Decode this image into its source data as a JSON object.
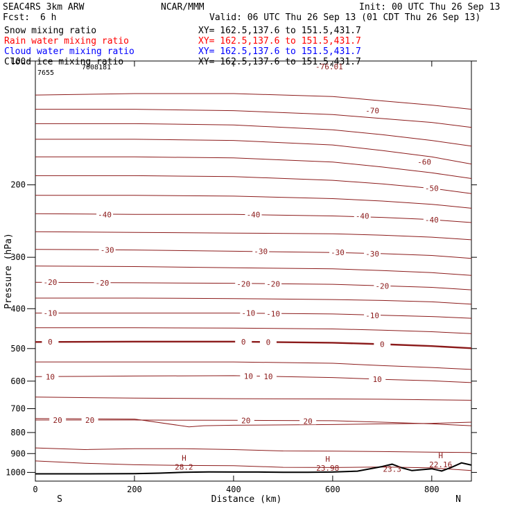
{
  "header": {
    "project": "SEAC4RS  3km ARW",
    "org": "NCAR/MMM",
    "init": "Init: 00 UTC Thu 26 Sep 13",
    "fcst_label": "Fcst:",
    "fcst_value": "6 h",
    "valid": "Valid: 06 UTC Thu 26 Sep 13 (01 CDT Thu 26 Sep 13)"
  },
  "legend": [
    {
      "name": "Snow mixing ratio",
      "xy": "XY= 162.5,137.6 to 151.5,431.7",
      "color": "#000000"
    },
    {
      "name": "Rain water mixing ratio",
      "xy": "XY= 162.5,137.6 to 151.5,431.7",
      "color": "#ff0000"
    },
    {
      "name": "Cloud water mixing ratio",
      "xy": "XY= 162.5,137.6 to 151.5,431.7",
      "color": "#0000ff"
    },
    {
      "name": "Cloud ice mixing ratio",
      "xy": "XY= 162.5,137.6 to 151.5,431.7",
      "color": "#000000"
    }
  ],
  "colors": {
    "contour": "#8b1a1a",
    "axis": "#000000",
    "terrain": "#000000"
  },
  "chart_data": {
    "type": "line",
    "xlabel": "Distance (km)",
    "ylabel": "Pressure (hPa)",
    "xlim": [
      0,
      880
    ],
    "ylim": [
      1050,
      100
    ],
    "yscale": "log",
    "x_ticks": [
      0,
      200,
      400,
      600,
      800
    ],
    "y_ticks": [
      100,
      200,
      300,
      400,
      500,
      600,
      700,
      800,
      900,
      1000
    ],
    "x_end_labels": {
      "left": "S",
      "right": "N"
    },
    "annotations": [
      "7655",
      "7008181",
      "-76.01"
    ],
    "contour_interval": 5,
    "isotherms": [
      {
        "level": -75,
        "x": [
          0,
          200,
          400,
          600,
          700,
          800,
          880
        ],
        "p": [
          121,
          120,
          120,
          122,
          125,
          128,
          131
        ]
      },
      {
        "level": -70,
        "x": [
          0,
          200,
          400,
          600,
          700,
          800,
          880
        ],
        "p": [
          131,
          131,
          132,
          135,
          138,
          141,
          145
        ]
      },
      {
        "level": -65,
        "x": [
          0,
          200,
          400,
          600,
          700,
          800,
          880
        ],
        "p": [
          142,
          142,
          143,
          147,
          151,
          156,
          161
        ]
      },
      {
        "level": -60,
        "x": [
          0,
          200,
          400,
          600,
          700,
          800,
          880
        ],
        "p": [
          155,
          155,
          156,
          160,
          165,
          171,
          178
        ]
      },
      {
        "level": -55,
        "x": [
          0,
          200,
          400,
          600,
          700,
          800,
          880
        ],
        "p": [
          171,
          171,
          172,
          176,
          181,
          187,
          193
        ]
      },
      {
        "level": -50,
        "x": [
          0,
          200,
          400,
          600,
          700,
          800,
          880
        ],
        "p": [
          190,
          190,
          191,
          195,
          199,
          204,
          210
        ]
      },
      {
        "level": -45,
        "x": [
          0,
          200,
          400,
          600,
          700,
          800,
          880
        ],
        "p": [
          212,
          212,
          213,
          216,
          219,
          223,
          228
        ]
      },
      {
        "level": -40,
        "x": [
          0,
          200,
          400,
          600,
          700,
          800,
          880
        ],
        "p": [
          235,
          236,
          236,
          238,
          240,
          243,
          247
        ]
      },
      {
        "level": -35,
        "x": [
          0,
          200,
          400,
          600,
          700,
          800,
          880
        ],
        "p": [
          260,
          261,
          262,
          263,
          265,
          268,
          272
        ]
      },
      {
        "level": -30,
        "x": [
          0,
          200,
          400,
          600,
          700,
          800,
          880
        ],
        "p": [
          287,
          288,
          290,
          292,
          294,
          297,
          302
        ]
      },
      {
        "level": -25,
        "x": [
          0,
          200,
          400,
          600,
          700,
          800,
          880
        ],
        "p": [
          315,
          316,
          318,
          320,
          323,
          327,
          332
        ]
      },
      {
        "level": -20,
        "x": [
          0,
          200,
          400,
          600,
          700,
          800,
          880
        ],
        "p": [
          345,
          346,
          347,
          349,
          352,
          355,
          360
        ]
      },
      {
        "level": -15,
        "x": [
          0,
          200,
          400,
          600,
          700,
          800,
          880
        ],
        "p": [
          377,
          377,
          378,
          380,
          382,
          385,
          390
        ]
      },
      {
        "level": -10,
        "x": [
          0,
          200,
          400,
          600,
          700,
          800,
          880
        ],
        "p": [
          410,
          410,
          410,
          412,
          415,
          418,
          422
        ]
      },
      {
        "level": -5,
        "x": [
          0,
          200,
          400,
          600,
          700,
          800,
          880
        ],
        "p": [
          445,
          445,
          446,
          448,
          451,
          455,
          460
        ]
      },
      {
        "level": 0,
        "x": [
          0,
          200,
          400,
          600,
          700,
          800,
          880
        ],
        "p": [
          482,
          481,
          481,
          484,
          488,
          493,
          499
        ]
      },
      {
        "level": 5,
        "x": [
          0,
          200,
          400,
          600,
          700,
          800,
          880
        ],
        "p": [
          539,
          539,
          539,
          543,
          550,
          556,
          562
        ]
      },
      {
        "level": 10,
        "x": [
          0,
          200,
          400,
          600,
          700,
          800,
          880
        ],
        "p": [
          585,
          583,
          582,
          588,
          594,
          599,
          605
        ]
      },
      {
        "level": 15,
        "x": [
          0,
          200,
          400,
          600,
          700,
          800,
          880
        ],
        "p": [
          656,
          660,
          662,
          663,
          664,
          666,
          668
        ]
      },
      {
        "level": 20,
        "x": [
          0,
          200,
          400,
          600,
          700,
          800,
          880
        ],
        "p": [
          746,
          746,
          747,
          749,
          755,
          762,
          770
        ]
      },
      {
        "level": 25,
        "x": [
          0,
          200,
          310,
          340,
          400,
          600,
          700,
          800,
          880
        ],
        "p": [
          740,
          742,
          775,
          770,
          768,
          765,
          762,
          760,
          755
        ]
      },
      {
        "level": 30,
        "x": [
          0,
          100,
          200,
          300,
          400,
          500,
          600,
          700,
          800,
          880
        ],
        "p": [
          872,
          880,
          876,
          876,
          880,
          887,
          888,
          890,
          893,
          895
        ]
      },
      {
        "level": 35,
        "x": [
          0,
          100,
          200,
          300,
          400,
          500,
          600,
          700,
          800,
          880
        ],
        "p": [
          938,
          950,
          958,
          962,
          963,
          972,
          973,
          970,
          975,
          990
        ]
      }
    ],
    "terrain": {
      "x": [
        0,
        100,
        200,
        250,
        300,
        350,
        400,
        450,
        500,
        550,
        600,
        650,
        700,
        720,
        740,
        760,
        800,
        820,
        840,
        860,
        880
      ],
      "p": [
        1008,
        1008,
        1007,
        1004,
        999,
        997,
        998,
        998,
        999,
        999,
        998,
        993,
        968,
        955,
        975,
        990,
        980,
        992,
        972,
        948,
        960
      ]
    },
    "labels": [
      {
        "text": "-70",
        "x": 680,
        "p": 132
      },
      {
        "text": "-60",
        "x": 785,
        "p": 176
      },
      {
        "text": "-50",
        "x": 800,
        "p": 204
      },
      {
        "text": "-40",
        "x": 140,
        "p": 236
      },
      {
        "text": "-40",
        "x": 440,
        "p": 236
      },
      {
        "text": "-40",
        "x": 660,
        "p": 238
      },
      {
        "text": "-40",
        "x": 800,
        "p": 243
      },
      {
        "text": "-30",
        "x": 145,
        "p": 288
      },
      {
        "text": "-30",
        "x": 455,
        "p": 290
      },
      {
        "text": "-30",
        "x": 610,
        "p": 292
      },
      {
        "text": "-30",
        "x": 680,
        "p": 294
      },
      {
        "text": "-20",
        "x": 30,
        "p": 345
      },
      {
        "text": "-20",
        "x": 135,
        "p": 346
      },
      {
        "text": "-20",
        "x": 420,
        "p": 348
      },
      {
        "text": "-20",
        "x": 480,
        "p": 348
      },
      {
        "text": "-20",
        "x": 700,
        "p": 352
      },
      {
        "text": "-10",
        "x": 30,
        "p": 410
      },
      {
        "text": "-10",
        "x": 430,
        "p": 410
      },
      {
        "text": "-10",
        "x": 480,
        "p": 411
      },
      {
        "text": "-10",
        "x": 680,
        "p": 415
      },
      {
        "text": "0",
        "x": 30,
        "p": 481
      },
      {
        "text": "0",
        "x": 420,
        "p": 481
      },
      {
        "text": "0",
        "x": 470,
        "p": 482
      },
      {
        "text": "0",
        "x": 700,
        "p": 488
      },
      {
        "text": "10",
        "x": 30,
        "p": 585
      },
      {
        "text": "10",
        "x": 430,
        "p": 583
      },
      {
        "text": "10",
        "x": 470,
        "p": 584
      },
      {
        "text": "10",
        "x": 690,
        "p": 594
      },
      {
        "text": "20",
        "x": 45,
        "p": 746
      },
      {
        "text": "20",
        "x": 110,
        "p": 746
      },
      {
        "text": "20",
        "x": 425,
        "p": 748
      },
      {
        "text": "20",
        "x": 550,
        "p": 750
      }
    ],
    "extrema": [
      {
        "text": "H",
        "value": "28.2",
        "x": 300,
        "p": 958
      },
      {
        "text": "H",
        "value": "23.98",
        "x": 590,
        "p": 965
      },
      {
        "text": "",
        "value": "23.3",
        "x": 720,
        "p": 970
      },
      {
        "text": "H",
        "value": "22.16",
        "x": 818,
        "p": 945
      }
    ]
  }
}
